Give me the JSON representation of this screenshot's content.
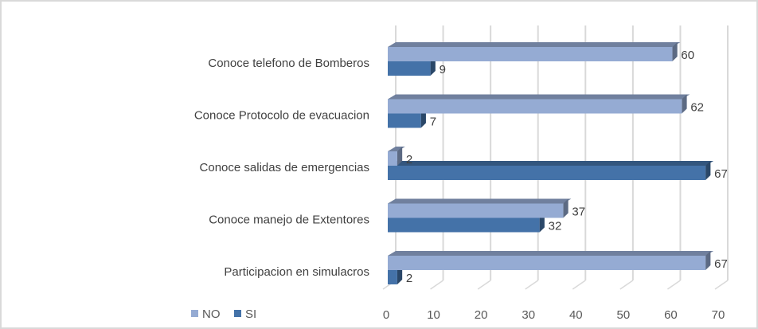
{
  "chart_data": {
    "type": "bar",
    "orientation": "horizontal",
    "style": "3d-clustered",
    "categories": [
      "Conoce telefono de Bomberos",
      "Conoce Protocolo de evacuacion",
      "Conoce salidas de emergencias",
      "Conoce manejo de Extentores",
      "Participacion en simulacros"
    ],
    "series": [
      {
        "name": "NO",
        "color": "#95abd3",
        "values": [
          60,
          62,
          2,
          37,
          67
        ]
      },
      {
        "name": "SI",
        "color": "#4472a8",
        "values": [
          9,
          7,
          67,
          32,
          2
        ]
      }
    ],
    "xticks": [
      "0",
      "10",
      "20",
      "30",
      "40",
      "50",
      "60",
      "70"
    ],
    "xlim": [
      0,
      70
    ],
    "grid": true,
    "legend": "bottom-left",
    "title": "",
    "xlabel": "",
    "ylabel": ""
  }
}
